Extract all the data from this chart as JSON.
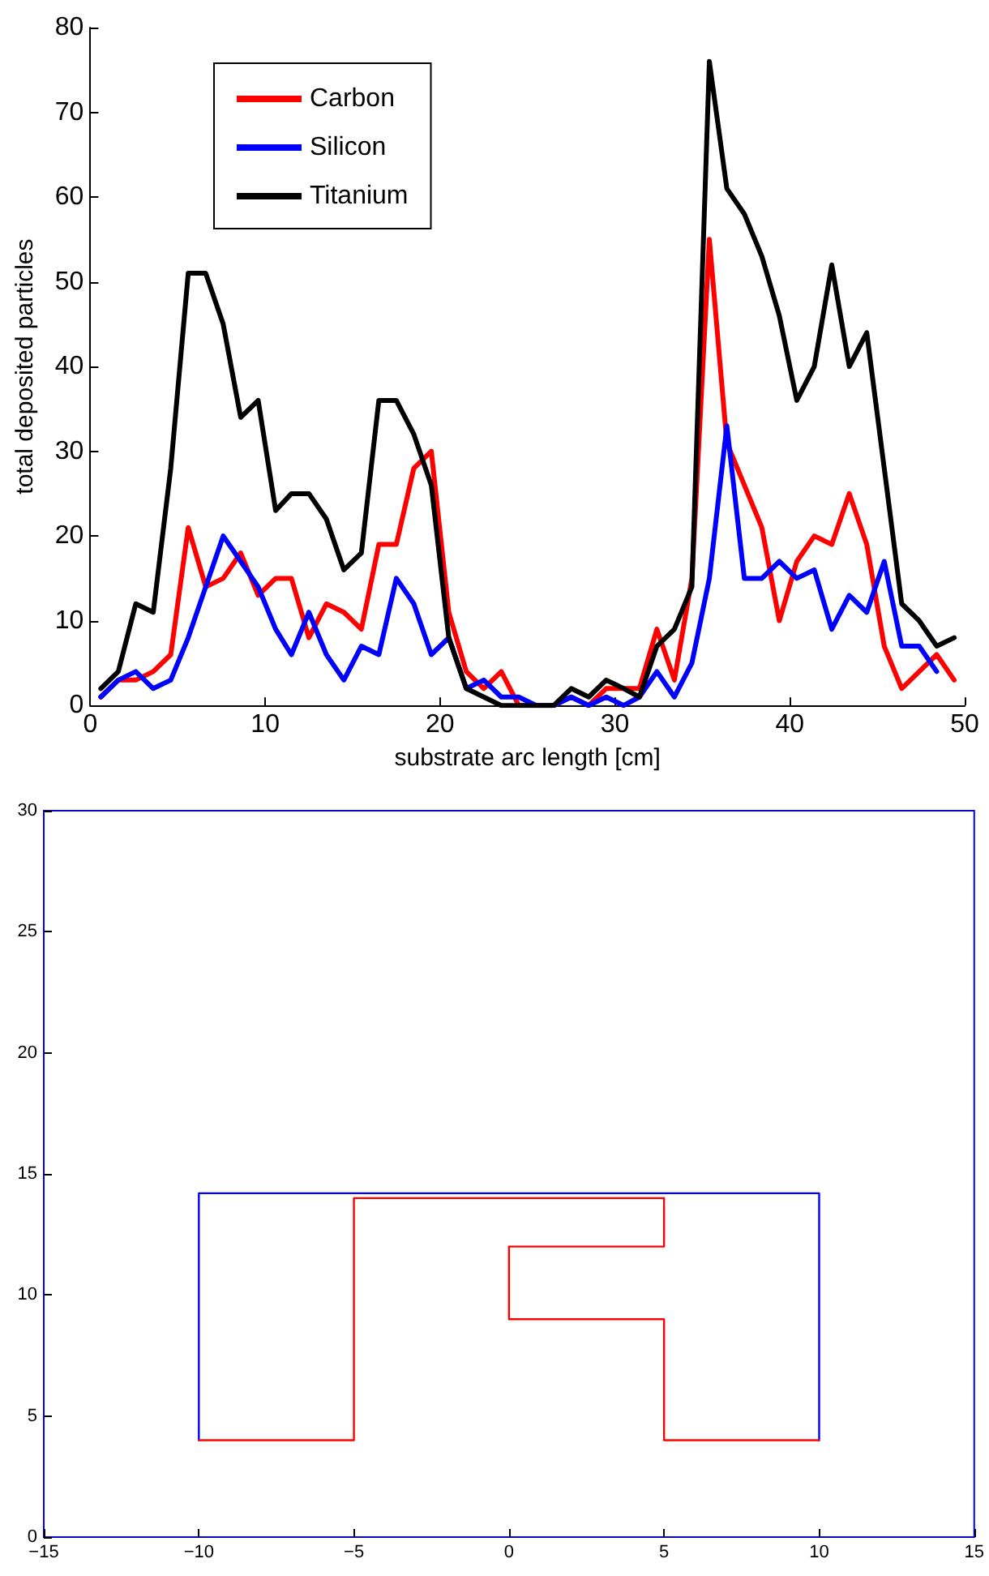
{
  "chart_data": [
    {
      "type": "line",
      "xlabel": "substrate arc length [cm]",
      "ylabel": "total deposited particles",
      "xlim": [
        0,
        50
      ],
      "xticks": [
        0,
        10,
        20,
        30,
        40,
        50
      ],
      "ylim": [
        0,
        80
      ],
      "yticks": [
        0,
        10,
        20,
        30,
        40,
        50,
        60,
        70,
        80
      ],
      "legend": "top left",
      "grid": false,
      "marker": "none",
      "line_style": "solid",
      "x": [
        0.6,
        1.6,
        2.6,
        3.6,
        4.6,
        5.6,
        6.6,
        7.6,
        8.6,
        9.6,
        10.6,
        11.5,
        12.5,
        13.5,
        14.5,
        15.5,
        16.5,
        17.5,
        18.5,
        19.5,
        20.5,
        21.5,
        22.5,
        23.5,
        24.5,
        25.5,
        26.5,
        27.5,
        28.5,
        29.5,
        30.5,
        31.4,
        32.4,
        33.4,
        34.4,
        35.4,
        36.4,
        37.4,
        38.4,
        39.4,
        40.4,
        41.4,
        42.4,
        43.4,
        44.4,
        45.4,
        46.4,
        47.4,
        48.4,
        49.4
      ],
      "series": [
        {
          "name": "Carbon",
          "color": "#ff0000",
          "values": [
            1,
            3,
            3,
            4,
            6,
            21,
            14,
            15,
            18,
            13,
            15,
            15,
            8,
            12,
            11,
            9,
            19,
            19,
            28,
            30,
            11,
            4,
            2,
            4,
            0,
            0,
            0,
            1,
            0,
            2,
            2,
            2,
            9,
            3,
            15,
            55,
            31,
            26,
            21,
            10,
            17,
            20,
            19,
            25,
            19,
            7,
            2,
            4,
            6,
            3
          ]
        },
        {
          "name": "Silicon",
          "color": "#0000ff",
          "values": [
            1,
            3,
            4,
            2,
            3,
            8,
            14,
            20,
            17,
            14,
            9,
            6,
            11,
            6,
            3,
            7,
            6,
            15,
            12,
            6,
            8,
            2,
            3,
            1,
            1,
            0,
            0,
            1,
            0,
            1,
            0,
            1,
            4,
            1,
            5,
            15,
            33,
            15,
            15,
            17,
            15,
            16,
            9,
            13,
            11,
            17,
            7,
            7,
            4,
            null
          ]
        },
        {
          "name": "Titanium",
          "color": "#000000",
          "values": [
            2,
            4,
            12,
            11,
            28,
            51,
            51,
            45,
            34,
            36,
            23,
            25,
            25,
            22,
            16,
            18,
            36,
            36,
            32,
            26,
            8,
            2,
            1,
            0,
            0,
            0,
            0,
            2,
            1,
            3,
            2,
            1,
            7,
            9,
            14,
            76,
            61,
            58,
            53,
            46,
            36,
            40,
            52,
            40,
            44,
            28,
            12,
            10,
            7,
            8
          ]
        }
      ]
    },
    {
      "type": "line",
      "xlim": [
        -15,
        15
      ],
      "xticks": [
        -15,
        -10,
        -5,
        0,
        5,
        10,
        15
      ],
      "ylim": [
        0,
        30
      ],
      "yticks": [
        0,
        5,
        10,
        15,
        20,
        25,
        30
      ],
      "grid": false,
      "marker": "none",
      "line_style": "solid",
      "series": [
        {
          "color": "#0000ff",
          "x": [
            -10,
            -10,
            10,
            10
          ],
          "values": [
            4,
            14.2,
            14.2,
            4
          ]
        },
        {
          "color": "#ff0000",
          "x": [
            -10,
            -5,
            -5,
            5,
            5,
            0,
            0,
            5,
            5,
            10
          ],
          "values": [
            4,
            4,
            14,
            14,
            12,
            12,
            9,
            9,
            4,
            4
          ]
        }
      ]
    }
  ]
}
